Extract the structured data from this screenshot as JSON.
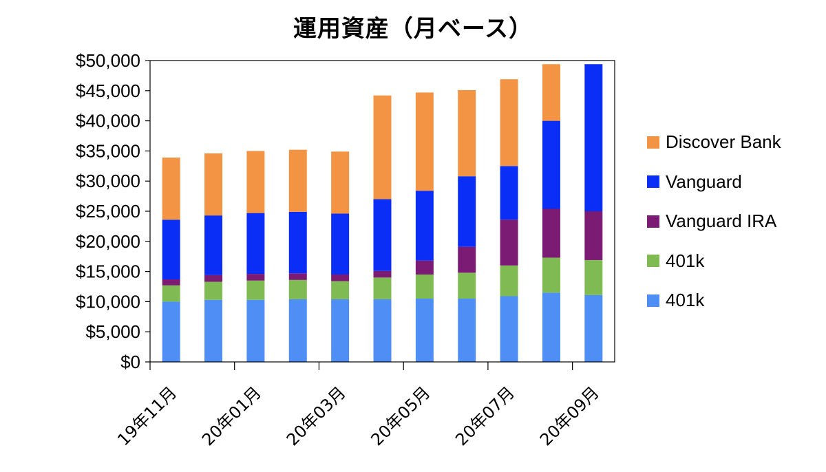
{
  "chart_data": {
    "type": "bar",
    "stacked": true,
    "title": "運用資産（月ベース）",
    "xlabel": "",
    "ylabel": "",
    "ylim": [
      0,
      50000
    ],
    "y_ticks": [
      0,
      5000,
      10000,
      15000,
      20000,
      25000,
      30000,
      35000,
      40000,
      45000,
      50000
    ],
    "y_tick_labels": [
      "$0",
      "$5,000",
      "$10,000",
      "$15,000",
      "$20,000",
      "$25,000",
      "$30,000",
      "$35,000",
      "$40,000",
      "$45,000",
      "$50,000"
    ],
    "categories": [
      "19年11月",
      "19年12月",
      "20年01月",
      "20年02月",
      "20年03月",
      "20年04月",
      "20年05月",
      "20年06月",
      "20年07月",
      "20年08月",
      "20年09月"
    ],
    "x_tick_labels": [
      "19年11月",
      "20年01月",
      "20年03月",
      "20年05月",
      "20年07月",
      "20年09月"
    ],
    "grid": false,
    "legend_position": "right",
    "series": [
      {
        "name": "401k",
        "color": "#4f8ff5",
        "values": [
          10000,
          10300,
          10300,
          10400,
          10400,
          10400,
          10500,
          10500,
          10900,
          11500,
          11100
        ]
      },
      {
        "name": "401k",
        "color": "#7fba53",
        "values": [
          2700,
          3000,
          3200,
          3200,
          3000,
          3600,
          4000,
          4300,
          5100,
          5800,
          5800
        ]
      },
      {
        "name": "Vanguard IRA",
        "color": "#7b1b73",
        "values": [
          1000,
          1100,
          1100,
          1100,
          1100,
          1100,
          2300,
          4300,
          7600,
          8100,
          8100
        ]
      },
      {
        "name": "Vanguard",
        "color": "#0a2ef5",
        "values": [
          9900,
          9900,
          10100,
          10200,
          10100,
          11900,
          11600,
          11700,
          8900,
          14600,
          24400
        ]
      },
      {
        "name": "Discover Bank",
        "color": "#f39444",
        "values": [
          10300,
          10300,
          10300,
          10300,
          10300,
          17200,
          16300,
          14300,
          14400,
          9400,
          0
        ]
      }
    ]
  }
}
